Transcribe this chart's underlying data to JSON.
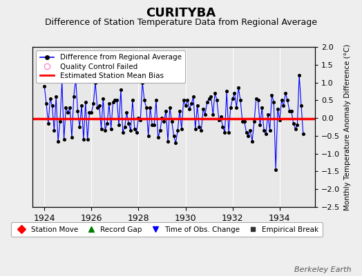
{
  "title": "CURITYBA",
  "subtitle": "Difference of Station Temperature Data from Regional Average",
  "ylabel": "Monthly Temperature Anomaly Difference (°C)",
  "background_color": "#eeeeee",
  "plot_bg_color": "#e8e8e8",
  "ylim": [
    -2.5,
    2.0
  ],
  "xlim": [
    1923.5,
    1935.5
  ],
  "yticks": [
    -2.5,
    -2.0,
    -1.5,
    -1.0,
    -0.5,
    0.0,
    0.5,
    1.0,
    1.5,
    2.0
  ],
  "xticks": [
    1924,
    1926,
    1928,
    1930,
    1932,
    1934
  ],
  "mean_bias": -0.02,
  "title_fontsize": 13,
  "subtitle_fontsize": 9,
  "watermark": "Berkeley Earth",
  "line_color": "#0000ff",
  "dot_color": "#000000",
  "bias_color": "#ff0000",
  "x_data": [
    1924.0,
    1924.083,
    1924.167,
    1924.25,
    1924.333,
    1924.417,
    1924.5,
    1924.583,
    1924.667,
    1924.75,
    1924.833,
    1924.917,
    1925.0,
    1925.083,
    1925.167,
    1925.25,
    1925.333,
    1925.417,
    1925.5,
    1925.583,
    1925.667,
    1925.75,
    1925.833,
    1925.917,
    1926.0,
    1926.083,
    1926.167,
    1926.25,
    1926.333,
    1926.417,
    1926.5,
    1926.583,
    1926.667,
    1926.75,
    1926.833,
    1926.917,
    1927.0,
    1927.083,
    1927.167,
    1927.25,
    1927.333,
    1927.417,
    1927.5,
    1927.583,
    1927.667,
    1927.75,
    1927.833,
    1927.917,
    1928.0,
    1928.083,
    1928.167,
    1928.25,
    1928.333,
    1928.417,
    1928.5,
    1928.583,
    1928.667,
    1928.75,
    1928.833,
    1928.917,
    1929.0,
    1929.083,
    1929.167,
    1929.25,
    1929.333,
    1929.417,
    1929.5,
    1929.583,
    1929.667,
    1929.75,
    1929.833,
    1929.917,
    1930.0,
    1930.083,
    1930.167,
    1930.25,
    1930.333,
    1930.417,
    1930.5,
    1930.583,
    1930.667,
    1930.75,
    1930.833,
    1930.917,
    1931.0,
    1931.083,
    1931.167,
    1931.25,
    1931.333,
    1931.417,
    1931.5,
    1931.583,
    1931.667,
    1931.75,
    1931.833,
    1931.917,
    1932.0,
    1932.083,
    1932.167,
    1932.25,
    1932.333,
    1932.417,
    1932.5,
    1932.583,
    1932.667,
    1932.75,
    1932.833,
    1932.917,
    1933.0,
    1933.083,
    1933.167,
    1933.25,
    1933.333,
    1933.417,
    1933.5,
    1933.583,
    1933.667,
    1933.75,
    1933.833,
    1933.917,
    1934.0,
    1934.083,
    1934.167,
    1934.25,
    1934.333,
    1934.417,
    1934.5,
    1934.583,
    1934.667,
    1934.75,
    1934.833,
    1934.917,
    1935.0
  ],
  "y_data": [
    0.9,
    0.4,
    -0.15,
    0.55,
    0.35,
    -0.35,
    0.6,
    -0.65,
    -0.1,
    1.05,
    -0.6,
    0.3,
    0.15,
    0.3,
    -0.55,
    0.6,
    1.1,
    0.2,
    -0.25,
    0.35,
    -0.6,
    0.45,
    -0.6,
    0.15,
    0.15,
    0.4,
    1.0,
    0.3,
    0.35,
    -0.3,
    0.55,
    -0.35,
    -0.15,
    0.4,
    -0.3,
    0.45,
    0.5,
    0.5,
    -0.2,
    0.8,
    -0.4,
    -0.25,
    0.15,
    -0.15,
    -0.35,
    0.5,
    -0.3,
    -0.4,
    0.0,
    -0.05,
    1.0,
    0.5,
    0.3,
    -0.5,
    0.3,
    -0.2,
    -0.2,
    0.5,
    -0.55,
    -0.35,
    0.0,
    -0.1,
    0.2,
    -0.65,
    0.3,
    -0.1,
    -0.5,
    -0.7,
    -0.35,
    0.2,
    -0.3,
    0.5,
    0.35,
    0.5,
    0.25,
    0.4,
    0.6,
    -0.3,
    0.35,
    -0.25,
    -0.35,
    0.25,
    0.1,
    0.45,
    0.55,
    0.6,
    0.1,
    0.7,
    0.5,
    -0.05,
    0.05,
    -0.25,
    -0.4,
    0.75,
    -0.4,
    0.3,
    0.55,
    0.7,
    0.3,
    0.85,
    0.5,
    -0.1,
    -0.1,
    -0.4,
    -0.5,
    -0.35,
    -0.65,
    -0.1,
    0.55,
    0.5,
    -0.2,
    0.3,
    -0.35,
    -0.45,
    0.1,
    -0.35,
    0.65,
    0.45,
    -1.45,
    0.25,
    -0.05,
    0.5,
    0.35,
    0.7,
    0.5,
    0.2,
    0.2,
    -0.15,
    -0.3,
    -0.2,
    1.2,
    0.35,
    -0.45
  ]
}
